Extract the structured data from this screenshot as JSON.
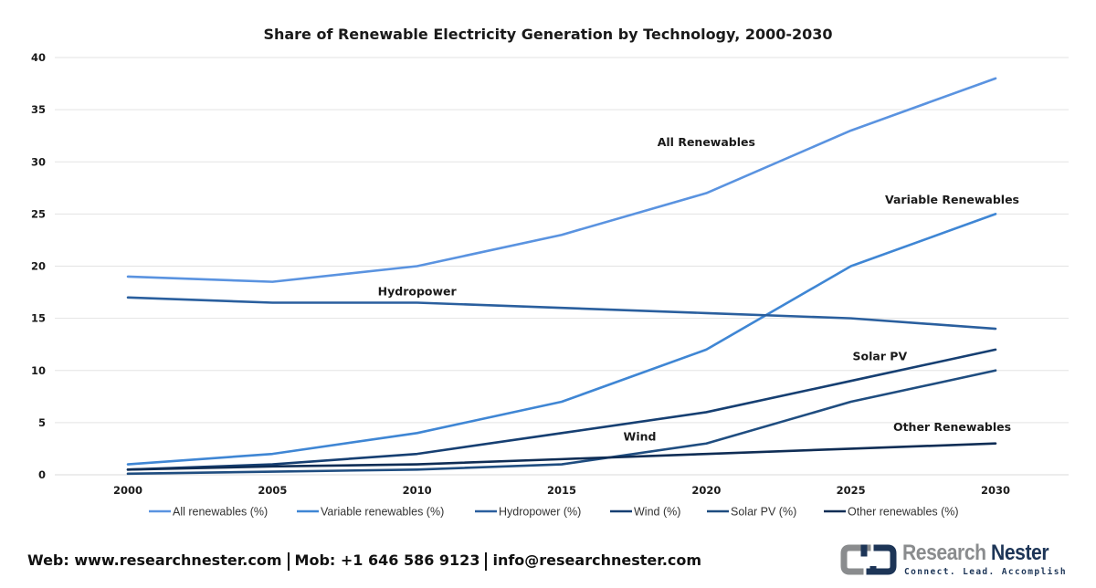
{
  "chart_data": {
    "type": "line",
    "title": "Share of Renewable Electricity Generation by Technology, 2000-2030",
    "xlabel": "",
    "ylabel": "",
    "x": [
      "2000",
      "2005",
      "2010",
      "2015",
      "2020",
      "2025",
      "2030"
    ],
    "ylim": [
      0,
      40
    ],
    "yticks": [
      "0",
      "5",
      "10",
      "15",
      "20",
      "25",
      "30",
      "35",
      "40"
    ],
    "grid": true,
    "legend_position": "bottom",
    "series": [
      {
        "name": "All renewables (%)",
        "color": "#5a93e0",
        "values": [
          19,
          18.5,
          20,
          23,
          27,
          33,
          38
        ]
      },
      {
        "name": "Variable renewables (%)",
        "color": "#3f86d4",
        "values": [
          1,
          2,
          4,
          7,
          12,
          20,
          25
        ]
      },
      {
        "name": "Hydropower (%)",
        "color": "#2a5f9e",
        "values": [
          17,
          16.5,
          16.5,
          16,
          15.5,
          15,
          14
        ]
      },
      {
        "name": "Wind (%)",
        "color": "#163f72",
        "values": [
          0.5,
          1,
          2,
          4,
          6,
          9,
          12
        ]
      },
      {
        "name": "Solar PV (%)",
        "color": "#1f4d80",
        "values": [
          0.1,
          0.3,
          0.5,
          1,
          3,
          7,
          10
        ]
      },
      {
        "name": "Other renewables (%)",
        "color": "#0f2d55",
        "values": [
          0.5,
          0.8,
          1,
          1.5,
          2,
          2.5,
          3
        ]
      }
    ],
    "annotations": [
      {
        "text": "All Renewables",
        "x": "2020",
        "y": 31.5
      },
      {
        "text": "Variable Renewables",
        "x": "2028.5",
        "y": 26
      },
      {
        "text": "Hydropower",
        "x": "2010",
        "y": 17.2
      },
      {
        "text": "Solar PV",
        "x": "2026",
        "y": 11
      },
      {
        "text": "Wind",
        "x": "2017.7",
        "y": 3.3
      },
      {
        "text": "Other Renewables",
        "x": "2028.5",
        "y": 4.2
      }
    ]
  },
  "footer": {
    "web": "Web: www.researchnester.com",
    "mob": "Mob: +1 646 586 9123",
    "email": "info@researchnester.com"
  },
  "logo": {
    "word1": "Research",
    "word2": "Nester",
    "tagline": "Connect. Lead. Accomplish"
  }
}
